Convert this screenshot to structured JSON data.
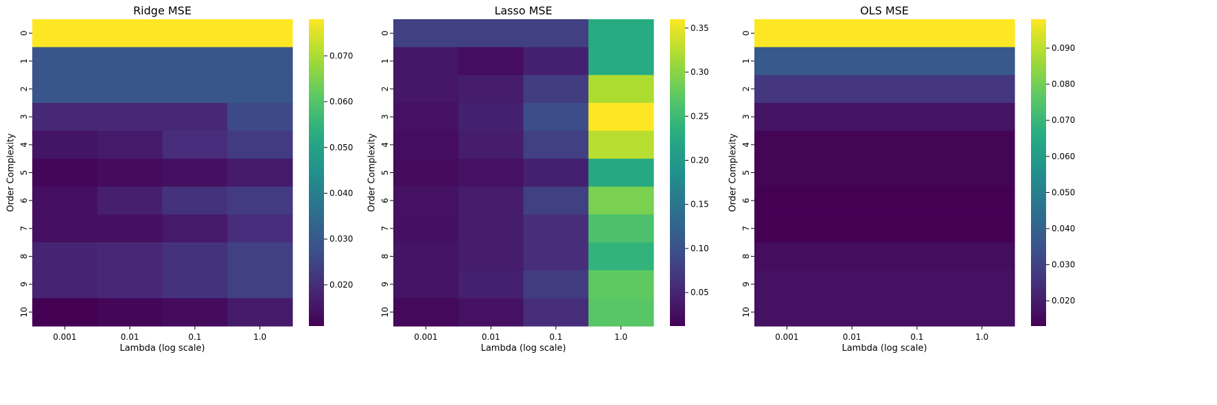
{
  "chart_data": [
    {
      "type": "heatmap",
      "title": "Ridge MSE",
      "xlabel": "Lambda (log scale)",
      "ylabel": "Order Complexity",
      "x_categories": [
        "0.001",
        "0.01",
        "0.1",
        "1.0"
      ],
      "y_categories": [
        "0",
        "1",
        "2",
        "3",
        "4",
        "5",
        "6",
        "7",
        "8",
        "9",
        "10"
      ],
      "values": [
        [
          0.078,
          0.078,
          0.078,
          0.078
        ],
        [
          0.029,
          0.029,
          0.029,
          0.029
        ],
        [
          0.029,
          0.029,
          0.029,
          0.029
        ],
        [
          0.019,
          0.019,
          0.019,
          0.026
        ],
        [
          0.015,
          0.016,
          0.02,
          0.023
        ],
        [
          0.012,
          0.013,
          0.014,
          0.016
        ],
        [
          0.014,
          0.017,
          0.021,
          0.023
        ],
        [
          0.014,
          0.014,
          0.016,
          0.02
        ],
        [
          0.018,
          0.019,
          0.021,
          0.024
        ],
        [
          0.018,
          0.019,
          0.021,
          0.024
        ],
        [
          0.011,
          0.012,
          0.013,
          0.016
        ]
      ],
      "colorbar": {
        "vmin": 0.011,
        "vmax": 0.078,
        "ticks": [
          0.02,
          0.03,
          0.04,
          0.05,
          0.06,
          0.07
        ]
      },
      "colormap": "viridis"
    },
    {
      "type": "heatmap",
      "title": "Lasso MSE",
      "xlabel": "Lambda (log scale)",
      "ylabel": "Order Complexity",
      "x_categories": [
        "0.001",
        "0.01",
        "0.1",
        "1.0"
      ],
      "y_categories": [
        "0",
        "1",
        "2",
        "3",
        "4",
        "5",
        "6",
        "7",
        "8",
        "9",
        "10"
      ],
      "values": [
        [
          0.08,
          0.08,
          0.08,
          0.23
        ],
        [
          0.035,
          0.025,
          0.045,
          0.23
        ],
        [
          0.035,
          0.04,
          0.075,
          0.32
        ],
        [
          0.03,
          0.045,
          0.095,
          0.36
        ],
        [
          0.025,
          0.04,
          0.08,
          0.325
        ],
        [
          0.022,
          0.03,
          0.045,
          0.225
        ],
        [
          0.03,
          0.04,
          0.08,
          0.29
        ],
        [
          0.028,
          0.04,
          0.06,
          0.26
        ],
        [
          0.032,
          0.04,
          0.06,
          0.24
        ],
        [
          0.032,
          0.045,
          0.075,
          0.275
        ],
        [
          0.02,
          0.03,
          0.06,
          0.27
        ]
      ],
      "colorbar": {
        "vmin": 0.012,
        "vmax": 0.36,
        "ticks": [
          0.05,
          0.1,
          0.15,
          0.2,
          0.25,
          0.3,
          0.35
        ]
      },
      "colormap": "viridis"
    },
    {
      "type": "heatmap",
      "title": "OLS MSE",
      "xlabel": "Lambda (log scale)",
      "ylabel": "Order Complexity",
      "x_categories": [
        "0.001",
        "0.01",
        "0.1",
        "1.0"
      ],
      "y_categories": [
        "0",
        "1",
        "2",
        "3",
        "4",
        "5",
        "6",
        "7",
        "8",
        "9",
        "10"
      ],
      "values": [
        [
          0.098,
          0.098,
          0.098,
          0.098
        ],
        [
          0.037,
          0.037,
          0.037,
          0.037
        ],
        [
          0.027,
          0.027,
          0.027,
          0.027
        ],
        [
          0.018,
          0.018,
          0.018,
          0.018
        ],
        [
          0.014,
          0.014,
          0.014,
          0.014
        ],
        [
          0.014,
          0.014,
          0.014,
          0.014
        ],
        [
          0.013,
          0.013,
          0.013,
          0.013
        ],
        [
          0.013,
          0.013,
          0.013,
          0.013
        ],
        [
          0.016,
          0.016,
          0.016,
          0.016
        ],
        [
          0.017,
          0.017,
          0.017,
          0.017
        ],
        [
          0.017,
          0.017,
          0.017,
          0.017
        ]
      ],
      "colorbar": {
        "vmin": 0.013,
        "vmax": 0.098,
        "ticks": [
          0.02,
          0.03,
          0.04,
          0.05,
          0.06,
          0.07,
          0.08,
          0.09
        ]
      },
      "colormap": "viridis"
    }
  ]
}
